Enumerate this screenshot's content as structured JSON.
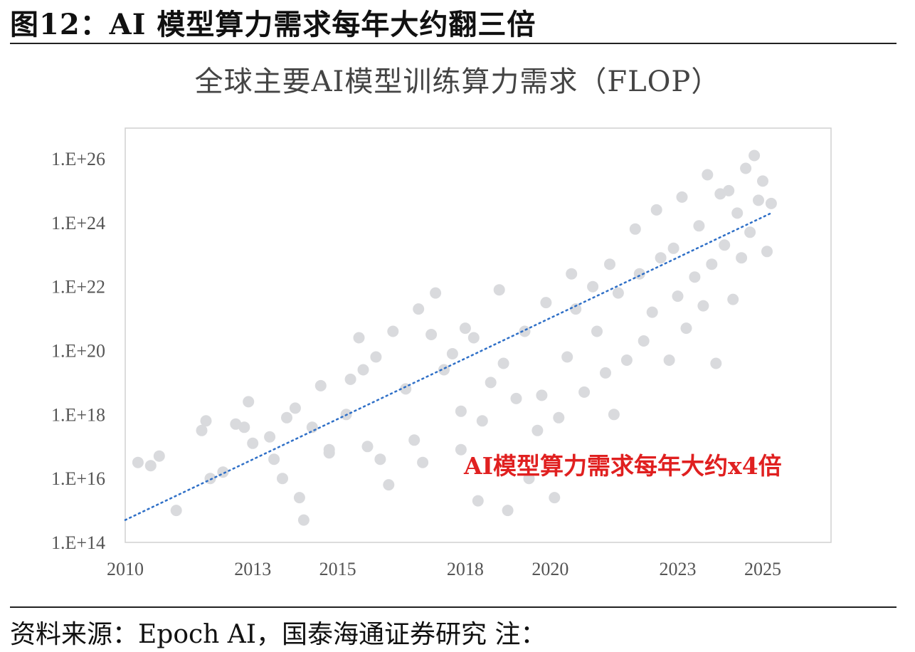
{
  "figure": {
    "title": "图12：AI 模型算力需求每年大约翻三倍",
    "source": "资料来源：Epoch AI，国泰海通证券研究  注："
  },
  "colors": {
    "point": "#d9dadd",
    "trend": "#2e6fc7",
    "annotation": "#e02020",
    "axis_text": "#555555",
    "frame": "#d0d0d0"
  },
  "chart_data": {
    "type": "scatter",
    "title": "全球主要AI模型训练算力需求（FLOP）",
    "xlabel": "",
    "ylabel": "",
    "x_range": [
      2010,
      2025.9
    ],
    "y_scale": "log10",
    "y_range": [
      100000000000000.0,
      1e+27
    ],
    "x_ticks": [
      {
        "value": 2010,
        "label": "2010"
      },
      {
        "value": 2013,
        "label": "2013"
      },
      {
        "value": 2015,
        "label": "2015"
      },
      {
        "value": 2018,
        "label": "2018"
      },
      {
        "value": 2020,
        "label": "2020"
      },
      {
        "value": 2023,
        "label": "2023"
      },
      {
        "value": 2025,
        "label": "2025"
      }
    ],
    "y_ticks": [
      {
        "value": 100000000000000.0,
        "label": "1.E+14"
      },
      {
        "value": 1e+16,
        "label": "1.E+16"
      },
      {
        "value": 1e+18,
        "label": "1.E+18"
      },
      {
        "value": 1e+20,
        "label": "1.E+20"
      },
      {
        "value": 1e+22,
        "label": "1.E+22"
      },
      {
        "value": 1e+24,
        "label": "1.E+24"
      },
      {
        "value": 1e+26,
        "label": "1.E+26"
      }
    ],
    "grid": false,
    "legend": "none",
    "trendline": {
      "x_start": 2010,
      "log10_y_start": 14.7,
      "x_end": 2025.2,
      "log10_y_end": 24.3
    },
    "annotation": "AI模型算力需求每年大约x4倍",
    "points": [
      [
        2010.3,
        16.5
      ],
      [
        2010.6,
        16.4
      ],
      [
        2010.8,
        16.7
      ],
      [
        2011.2,
        15.0
      ],
      [
        2011.8,
        17.5
      ],
      [
        2011.9,
        17.8
      ],
      [
        2012.0,
        16.0
      ],
      [
        2012.3,
        16.2
      ],
      [
        2012.6,
        17.7
      ],
      [
        2012.8,
        17.6
      ],
      [
        2012.9,
        18.4
      ],
      [
        2013.0,
        17.1
      ],
      [
        2013.4,
        17.3
      ],
      [
        2013.5,
        16.6
      ],
      [
        2013.7,
        16.0
      ],
      [
        2013.8,
        17.9
      ],
      [
        2014.0,
        18.2
      ],
      [
        2014.1,
        15.4
      ],
      [
        2014.2,
        14.7
      ],
      [
        2014.4,
        17.6
      ],
      [
        2014.6,
        18.9
      ],
      [
        2014.8,
        16.8
      ],
      [
        2014.8,
        16.9
      ],
      [
        2015.2,
        18.0
      ],
      [
        2015.3,
        19.1
      ],
      [
        2015.5,
        20.4
      ],
      [
        2015.6,
        19.4
      ],
      [
        2015.7,
        17.0
      ],
      [
        2015.9,
        19.8
      ],
      [
        2016.0,
        16.6
      ],
      [
        2016.2,
        15.8
      ],
      [
        2016.3,
        20.6
      ],
      [
        2016.6,
        18.8
      ],
      [
        2016.8,
        17.2
      ],
      [
        2016.9,
        21.3
      ],
      [
        2017.0,
        16.5
      ],
      [
        2017.2,
        20.5
      ],
      [
        2017.3,
        21.8
      ],
      [
        2017.5,
        19.4
      ],
      [
        2017.7,
        19.9
      ],
      [
        2017.9,
        18.1
      ],
      [
        2017.9,
        16.9
      ],
      [
        2018.0,
        20.7
      ],
      [
        2018.2,
        20.4
      ],
      [
        2018.3,
        15.3
      ],
      [
        2018.4,
        17.8
      ],
      [
        2018.6,
        19.0
      ],
      [
        2018.8,
        21.9
      ],
      [
        2018.9,
        19.6
      ],
      [
        2019.0,
        15.0
      ],
      [
        2019.2,
        18.5
      ],
      [
        2019.4,
        20.6
      ],
      [
        2019.5,
        16.0
      ],
      [
        2019.7,
        17.5
      ],
      [
        2019.8,
        18.6
      ],
      [
        2019.9,
        21.5
      ],
      [
        2020.1,
        15.4
      ],
      [
        2020.2,
        17.9
      ],
      [
        2020.4,
        19.8
      ],
      [
        2020.5,
        22.4
      ],
      [
        2020.6,
        21.3
      ],
      [
        2020.8,
        18.7
      ],
      [
        2021.0,
        22.0
      ],
      [
        2021.1,
        20.6
      ],
      [
        2021.3,
        19.3
      ],
      [
        2021.4,
        22.7
      ],
      [
        2021.5,
        18.0
      ],
      [
        2021.6,
        21.8
      ],
      [
        2021.8,
        19.7
      ],
      [
        2022.0,
        23.8
      ],
      [
        2022.1,
        22.4
      ],
      [
        2022.2,
        20.3
      ],
      [
        2022.4,
        21.2
      ],
      [
        2022.5,
        24.4
      ],
      [
        2022.6,
        22.9
      ],
      [
        2022.8,
        19.7
      ],
      [
        2022.9,
        23.2
      ],
      [
        2023.0,
        21.7
      ],
      [
        2023.1,
        24.8
      ],
      [
        2023.2,
        20.7
      ],
      [
        2023.4,
        22.3
      ],
      [
        2023.5,
        23.9
      ],
      [
        2023.6,
        21.4
      ],
      [
        2023.7,
        25.5
      ],
      [
        2023.8,
        22.7
      ],
      [
        2023.9,
        19.6
      ],
      [
        2024.0,
        24.9
      ],
      [
        2024.1,
        23.3
      ],
      [
        2024.2,
        25.0
      ],
      [
        2024.3,
        21.6
      ],
      [
        2024.4,
        24.3
      ],
      [
        2024.5,
        22.9
      ],
      [
        2024.6,
        25.7
      ],
      [
        2024.7,
        23.7
      ],
      [
        2024.8,
        26.1
      ],
      [
        2024.9,
        24.7
      ],
      [
        2025.0,
        25.3
      ],
      [
        2025.1,
        23.1
      ],
      [
        2025.2,
        24.6
      ]
    ]
  }
}
